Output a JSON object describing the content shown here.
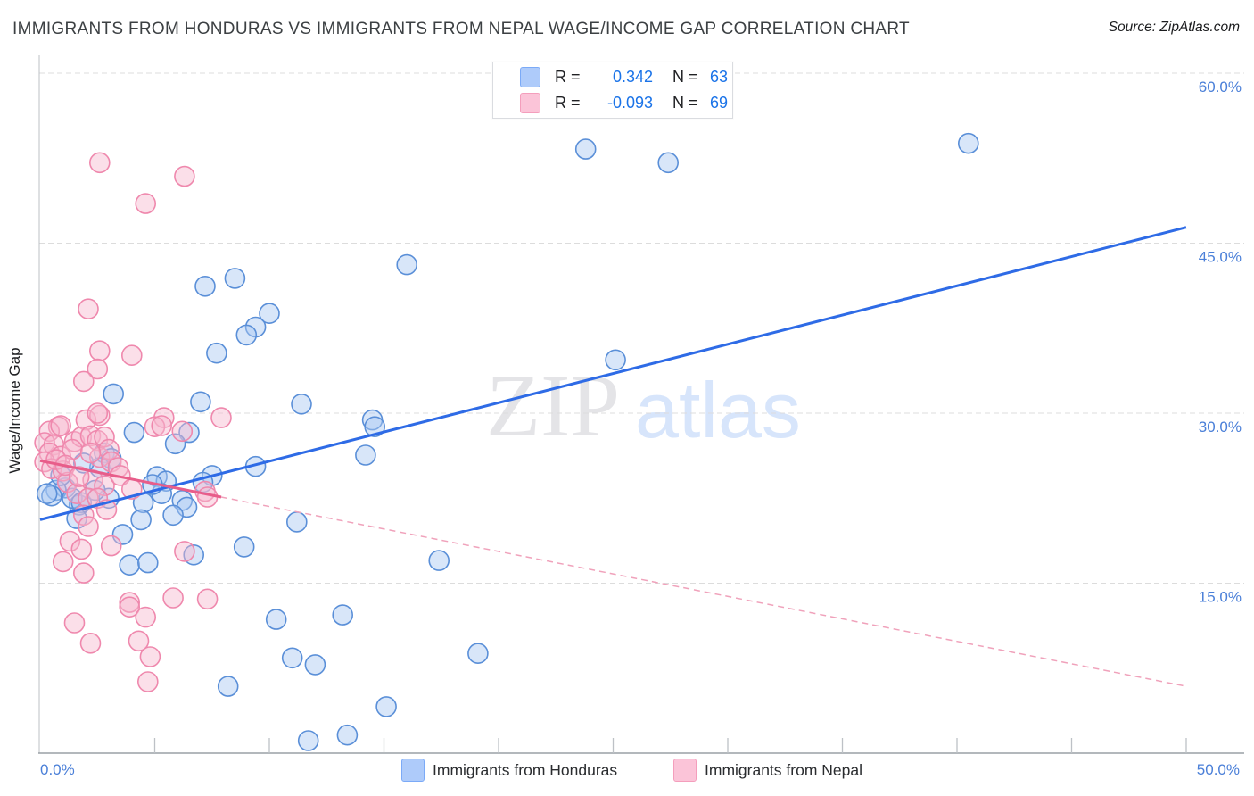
{
  "header": {
    "title": "IMMIGRANTS FROM HONDURAS VS IMMIGRANTS FROM NEPAL WAGE/INCOME GAP CORRELATION CHART",
    "source": "Source: ZipAtlas.com"
  },
  "watermark": {
    "zip": "ZIP",
    "atlas": "atlas"
  },
  "legend_box": {
    "rows": [
      {
        "r_label": "R =",
        "r_value": "0.342",
        "n_label": "N =",
        "n_value": "63"
      },
      {
        "r_label": "R =",
        "r_value": "-0.093",
        "n_label": "N =",
        "n_value": "69"
      }
    ]
  },
  "bottom_legend": [
    {
      "label": "Immigrants from Honduras"
    },
    {
      "label": "Immigrants from Nepal"
    }
  ],
  "colors": {
    "blue_stroke": "#5a8fd8",
    "blue_fill": "#a9c8f2",
    "pink_stroke": "#ef88ad",
    "pink_fill": "#f7b9cf",
    "blue_trend": "#2e6be6",
    "pink_trend": "#e85d8a",
    "pink_trend_dashed": "#f0a2bb",
    "gridline": "#dcdcdc",
    "axis": "#9aa0a6",
    "tick": "#bdc1c6",
    "axis_label_blue": "#4a7fd8",
    "watermark_zip": "#e4e4e7",
    "watermark_atlas": "#d7e5fb"
  },
  "chart_data": {
    "type": "scatter",
    "title": "IMMIGRANTS FROM HONDURAS VS IMMIGRANTS FROM NEPAL WAGE/INCOME GAP CORRELATION CHART",
    "xlabel": "",
    "ylabel": "Wage/Income Gap",
    "x_axis": {
      "min": 0,
      "max": 52.5,
      "tick_step": 5,
      "ticks": [
        5,
        10,
        15,
        20,
        25,
        30,
        35,
        40,
        45,
        50
      ],
      "label_left": "0.0%",
      "label_right": "50.0%"
    },
    "y_axis": {
      "min": 0,
      "max": 61.5,
      "gridlines": [
        15,
        30,
        45,
        60
      ],
      "tick_labels": [
        "15.0%",
        "30.0%",
        "45.0%",
        "60.0%"
      ]
    },
    "legend_position": "bottom",
    "grid": "horizontal-dashed",
    "series": [
      {
        "name": "Immigrants from Honduras",
        "R": 0.342,
        "N": 63,
        "points": [
          [
            7.2,
            41.2
          ],
          [
            8.5,
            41.9
          ],
          [
            10.0,
            38.8
          ],
          [
            9.4,
            37.6
          ],
          [
            9.0,
            36.9
          ],
          [
            7.7,
            35.3
          ],
          [
            16.0,
            43.1
          ],
          [
            23.8,
            53.3
          ],
          [
            27.4,
            52.1
          ],
          [
            40.5,
            53.8
          ],
          [
            25.1,
            34.7
          ],
          [
            14.5,
            29.4
          ],
          [
            14.6,
            28.8
          ],
          [
            14.2,
            26.3
          ],
          [
            17.4,
            17.0
          ],
          [
            19.1,
            8.8
          ],
          [
            11.4,
            30.8
          ],
          [
            11.2,
            20.4
          ],
          [
            3.2,
            31.7
          ],
          [
            7.0,
            31.0
          ],
          [
            4.1,
            28.3
          ],
          [
            6.5,
            28.3
          ],
          [
            5.9,
            27.3
          ],
          [
            2.8,
            26.5
          ],
          [
            3.1,
            26.0
          ],
          [
            9.4,
            25.3
          ],
          [
            7.5,
            24.5
          ],
          [
            5.1,
            24.4
          ],
          [
            5.5,
            24.0
          ],
          [
            1.1,
            23.4
          ],
          [
            0.7,
            23.2
          ],
          [
            0.5,
            22.7
          ],
          [
            1.7,
            21.9
          ],
          [
            1.4,
            22.5
          ],
          [
            1.8,
            22.1
          ],
          [
            5.3,
            22.9
          ],
          [
            6.2,
            22.3
          ],
          [
            6.4,
            21.7
          ],
          [
            4.5,
            22.1
          ],
          [
            4.4,
            20.6
          ],
          [
            5.8,
            21.0
          ],
          [
            3.6,
            19.3
          ],
          [
            3.9,
            16.6
          ],
          [
            4.7,
            16.8
          ],
          [
            6.7,
            17.5
          ],
          [
            8.9,
            18.2
          ],
          [
            8.2,
            5.9
          ],
          [
            10.3,
            11.8
          ],
          [
            11.0,
            8.4
          ],
          [
            12.0,
            7.8
          ],
          [
            13.2,
            12.2
          ],
          [
            11.7,
            1.1
          ],
          [
            13.4,
            1.6
          ],
          [
            15.1,
            4.1
          ],
          [
            0.3,
            22.9
          ],
          [
            2.6,
            25.2
          ],
          [
            4.9,
            23.7
          ],
          [
            1.6,
            20.7
          ],
          [
            7.1,
            23.9
          ],
          [
            0.9,
            24.5
          ],
          [
            1.9,
            25.6
          ],
          [
            3.0,
            22.5
          ],
          [
            2.4,
            23.2
          ]
        ]
      },
      {
        "name": "Immigrants from Nepal",
        "R": -0.093,
        "N": 69,
        "points": [
          [
            2.6,
            52.1
          ],
          [
            6.3,
            50.9
          ],
          [
            4.6,
            48.5
          ],
          [
            2.1,
            39.2
          ],
          [
            2.6,
            35.5
          ],
          [
            4.0,
            35.1
          ],
          [
            2.5,
            33.9
          ],
          [
            1.9,
            32.8
          ],
          [
            2.0,
            29.4
          ],
          [
            2.6,
            29.8
          ],
          [
            2.5,
            30.0
          ],
          [
            5.4,
            29.6
          ],
          [
            5.0,
            28.8
          ],
          [
            7.9,
            29.6
          ],
          [
            0.8,
            28.8
          ],
          [
            0.4,
            28.4
          ],
          [
            0.9,
            28.9
          ],
          [
            1.5,
            27.5
          ],
          [
            1.8,
            27.9
          ],
          [
            2.2,
            28.0
          ],
          [
            2.5,
            27.6
          ],
          [
            2.8,
            27.9
          ],
          [
            0.2,
            27.4
          ],
          [
            0.6,
            27.2
          ],
          [
            0.4,
            26.5
          ],
          [
            0.9,
            26.2
          ],
          [
            0.2,
            25.7
          ],
          [
            0.5,
            25.1
          ],
          [
            1.0,
            24.9
          ],
          [
            2.6,
            26.1
          ],
          [
            3.0,
            26.8
          ],
          [
            3.1,
            25.7
          ],
          [
            3.4,
            25.2
          ],
          [
            2.3,
            24.1
          ],
          [
            2.8,
            23.6
          ],
          [
            1.2,
            23.9
          ],
          [
            1.6,
            22.9
          ],
          [
            2.1,
            22.5
          ],
          [
            2.5,
            22.5
          ],
          [
            2.9,
            21.5
          ],
          [
            1.9,
            21.0
          ],
          [
            2.1,
            20.0
          ],
          [
            5.3,
            28.9
          ],
          [
            6.2,
            28.4
          ],
          [
            7.2,
            23.1
          ],
          [
            7.3,
            22.6
          ],
          [
            1.3,
            18.7
          ],
          [
            1.8,
            18.0
          ],
          [
            3.1,
            18.3
          ],
          [
            1.0,
            16.9
          ],
          [
            1.9,
            15.9
          ],
          [
            6.3,
            17.8
          ],
          [
            3.9,
            13.3
          ],
          [
            5.8,
            13.7
          ],
          [
            7.3,
            13.6
          ],
          [
            1.5,
            11.5
          ],
          [
            2.2,
            9.7
          ],
          [
            3.9,
            12.9
          ],
          [
            4.6,
            12.0
          ],
          [
            4.3,
            9.9
          ],
          [
            4.8,
            8.5
          ],
          [
            4.7,
            6.3
          ],
          [
            1.4,
            26.8
          ],
          [
            0.7,
            25.9
          ],
          [
            1.1,
            25.4
          ],
          [
            1.7,
            24.4
          ],
          [
            2.2,
            26.5
          ],
          [
            3.5,
            24.5
          ],
          [
            4.0,
            23.3
          ]
        ]
      }
    ],
    "trend_lines": [
      {
        "series": "Immigrants from Honduras",
        "from": [
          0,
          20.6
        ],
        "to": [
          50,
          46.4
        ],
        "style": "solid",
        "width": 3
      },
      {
        "series": "Immigrants from Nepal",
        "from": [
          0,
          25.8
        ],
        "to": [
          7.9,
          22.6
        ],
        "style": "solid",
        "width": 3
      },
      {
        "series": "Immigrants from Nepal",
        "from": [
          7.9,
          22.6
        ],
        "to": [
          50,
          5.9
        ],
        "style": "dashed",
        "width": 1.5
      }
    ]
  }
}
